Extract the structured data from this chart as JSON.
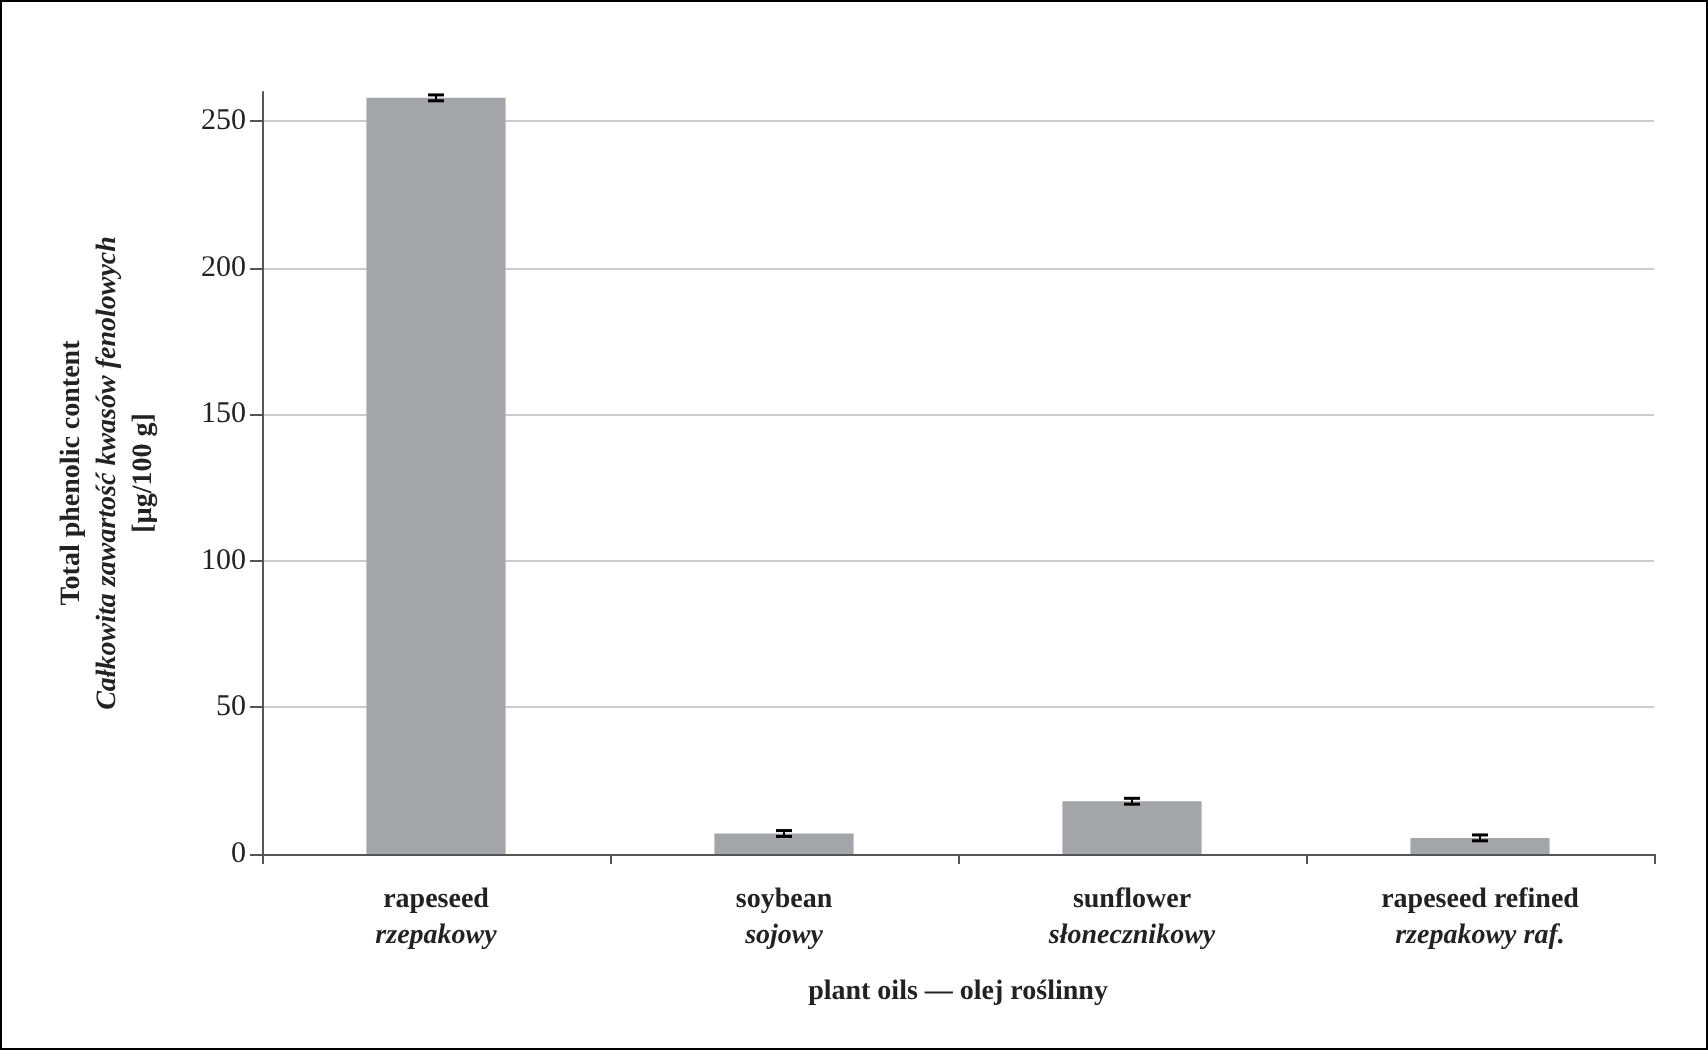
{
  "chart_data": {
    "type": "bar",
    "categories": [
      "rapeseed\nrzepakowy",
      "soybean\nsojowy",
      "sunflower\nsłonecznikowy",
      "rapeseed refined\nrzepakowy raf."
    ],
    "values": [
      258,
      7,
      18,
      5.5
    ],
    "errors": [
      1,
      1,
      1,
      1
    ],
    "color": "#a3a5a9",
    "ylabel": "Total phenolic content\nCałkowita zawartość kwasów fenolowych\n[µg/100 g]",
    "xlabel": "plant oils — olej roślinny",
    "ylim": [
      0,
      260
    ],
    "yticks": [
      0,
      50,
      100,
      150,
      200,
      250
    ],
    "grid": "y"
  }
}
